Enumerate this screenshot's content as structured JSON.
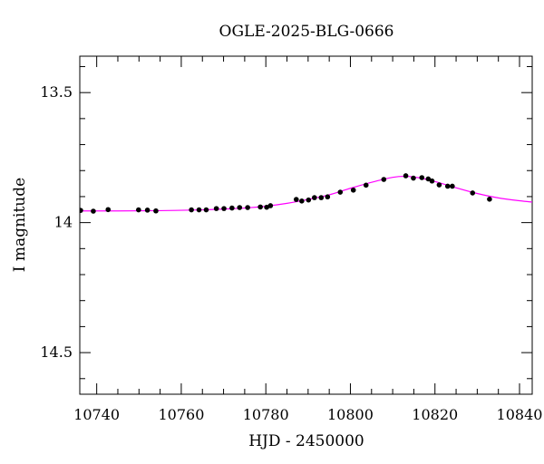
{
  "chart_data": {
    "type": "scatter",
    "title": "OGLE-2025-BLG-0666",
    "xlabel": "HJD - 2450000",
    "ylabel": "I magnitude",
    "xlim": [
      10736,
      10843
    ],
    "ylim": [
      14.66,
      13.36
    ],
    "y_inverted": true,
    "x_ticks": [
      10740,
      10760,
      10780,
      10800,
      10820,
      10840
    ],
    "x_tick_labels": [
      "10740",
      "10760",
      "10780",
      "10800",
      "10820",
      "10840"
    ],
    "y_ticks": [
      13.5,
      14,
      14.5
    ],
    "y_tick_labels": [
      "13.5",
      "14",
      "14.5"
    ],
    "grid": false,
    "legend": "none",
    "series": [
      {
        "kind": "points",
        "color": "#000000",
        "x": [
          10736.2,
          10739.2,
          10742.7,
          10749.9,
          10752.0,
          10754.0,
          10762.4,
          10764.2,
          10765.9,
          10768.3,
          10770.1,
          10772.0,
          10773.8,
          10775.7,
          10778.7,
          10780.2,
          10781.1,
          10787.2,
          10788.5,
          10790.1,
          10791.5,
          10793.1,
          10794.6,
          10797.6,
          10800.7,
          10803.7,
          10807.9,
          10813.1,
          10814.9,
          10816.9,
          10818.4,
          10819.3,
          10821.0,
          10823.0,
          10824.1,
          10828.9,
          10832.9
        ],
        "y": [
          13.953,
          13.956,
          13.95,
          13.951,
          13.952,
          13.955,
          13.951,
          13.951,
          13.951,
          13.946,
          13.946,
          13.944,
          13.942,
          13.942,
          13.94,
          13.941,
          13.935,
          13.911,
          13.917,
          13.913,
          13.904,
          13.904,
          13.901,
          13.883,
          13.875,
          13.856,
          13.834,
          13.82,
          13.829,
          13.827,
          13.832,
          13.84,
          13.855,
          13.86,
          13.86,
          13.886,
          13.91
        ]
      },
      {
        "kind": "model",
        "color": "#ff00ff",
        "x": [
          10736,
          10745,
          10755,
          10765,
          10770,
          10775,
          10780,
          10785,
          10790,
          10795,
          10800,
          10805,
          10810,
          10813,
          10816,
          10820,
          10825,
          10830,
          10835,
          10840,
          10843
        ],
        "y": [
          13.955,
          13.955,
          13.954,
          13.951,
          13.948,
          13.944,
          13.937,
          13.926,
          13.911,
          13.893,
          13.868,
          13.845,
          13.826,
          13.822,
          13.827,
          13.842,
          13.866,
          13.888,
          13.905,
          13.916,
          13.921
        ]
      }
    ]
  }
}
